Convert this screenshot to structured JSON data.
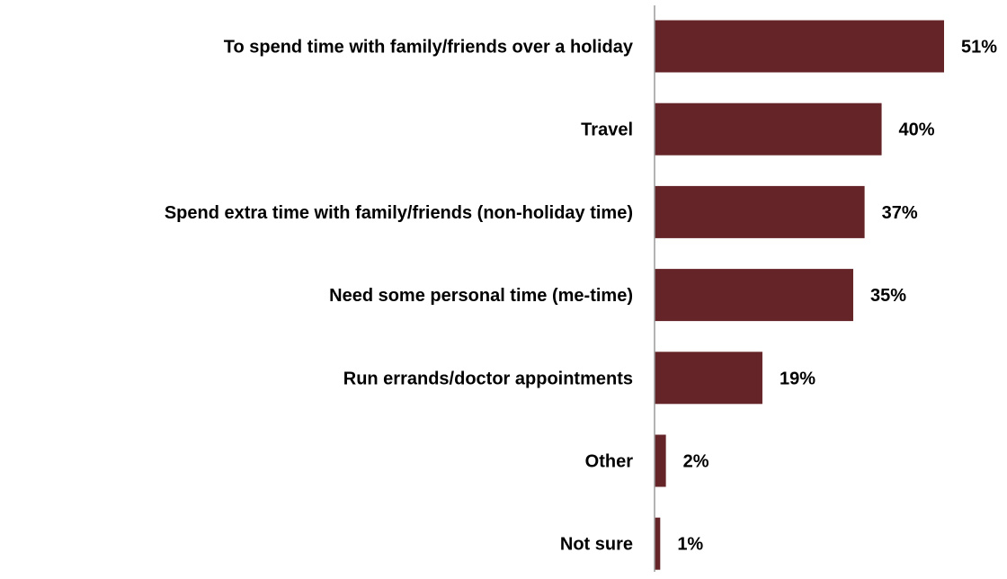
{
  "chart_data": {
    "type": "bar",
    "orientation": "horizontal",
    "categories": [
      "To spend time with family/friends over a holiday",
      "Travel",
      "Spend extra time with family/friends (non-holiday time)",
      "Need some personal time (me-time)",
      "Run errands/doctor appointments",
      "Other",
      "Not sure"
    ],
    "values": [
      51,
      40,
      37,
      35,
      19,
      2,
      1
    ],
    "value_labels": [
      "51%",
      "40%",
      "37%",
      "35%",
      "19%",
      "2%",
      "1%"
    ],
    "unit": "%",
    "xlim": [
      0,
      51
    ],
    "grid": false,
    "legend": "none",
    "bar_color": "#652427",
    "axis_color": "#9a9a9a"
  }
}
